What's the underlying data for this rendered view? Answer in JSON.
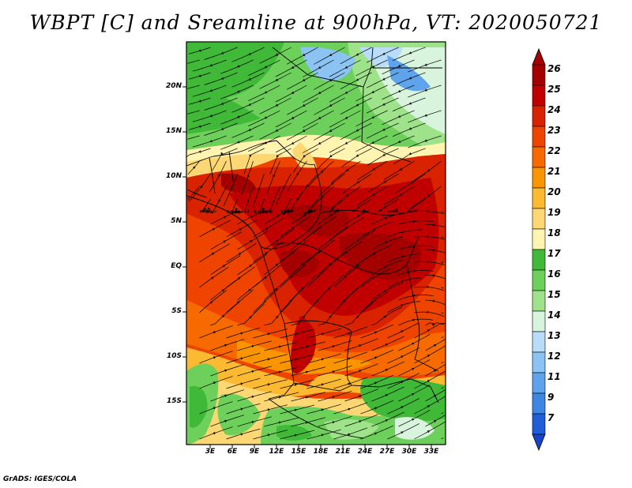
{
  "title": "WBPT [C] and Sreamline at 900hPa, VT: 2020050721",
  "credit": "GrADS: IGES/COLA",
  "map": {
    "lat_labels": [
      "20N",
      "15N",
      "10N",
      "5N",
      "EQ",
      "5S",
      "10S",
      "15S"
    ],
    "lon_labels": [
      "3E",
      "6E",
      "9E",
      "12E",
      "15E",
      "18E",
      "21E",
      "24E",
      "27E",
      "30E",
      "33E"
    ]
  },
  "colorbar": {
    "labels": [
      "26",
      "25",
      "24",
      "23",
      "22",
      "21",
      "20",
      "19",
      "18",
      "17",
      "16",
      "15",
      "14",
      "13",
      "12",
      "11",
      "9",
      "7"
    ],
    "colors": [
      "#a50000",
      "#c00000",
      "#d82200",
      "#ee4400",
      "#f66a00",
      "#fa9500",
      "#fcb932",
      "#fed775",
      "#fff4b0",
      "#40b838",
      "#6dd05a",
      "#9ee28a",
      "#d8f4dc",
      "#b9dcf8",
      "#8bc3f3",
      "#5ea3ec",
      "#3d86e4",
      "#1e5fd8",
      "#1a44c8"
    ],
    "top_color": "#a50000",
    "bottom_color": "#1a44c8"
  },
  "colors": {
    "streamline": "#000000",
    "border": "#000000"
  }
}
